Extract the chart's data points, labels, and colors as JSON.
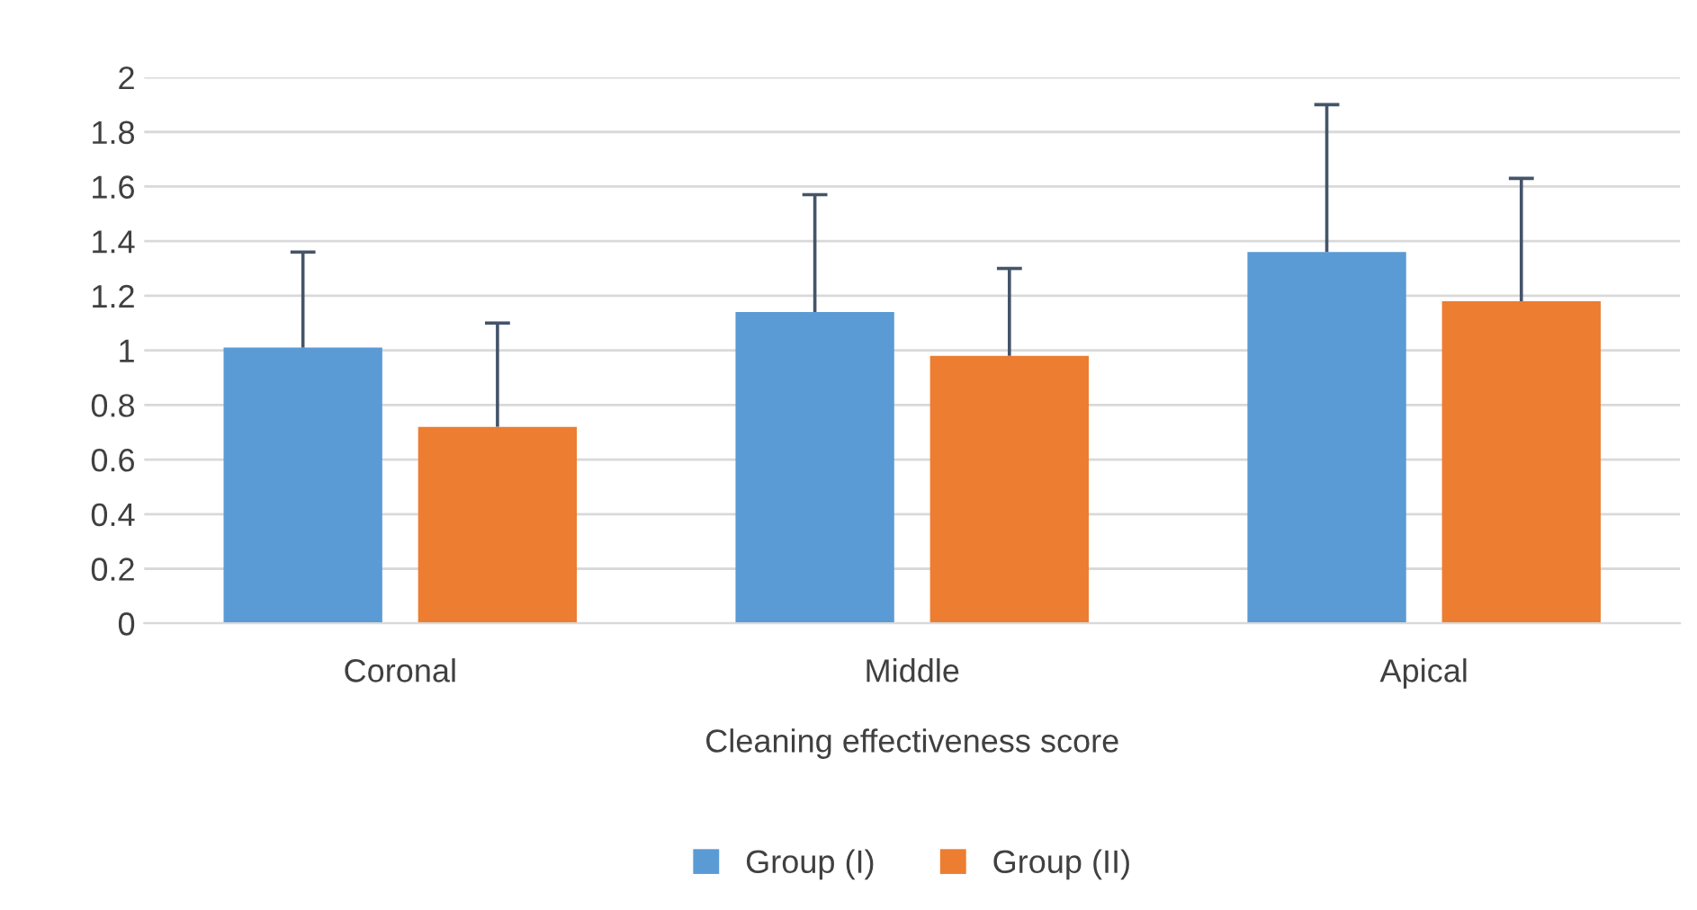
{
  "chart_data": {
    "type": "bar",
    "xlabel": "Cleaning effectiveness score",
    "categories": [
      "Coronal",
      "Middle",
      "Apical"
    ],
    "series": [
      {
        "name": "Group (I)",
        "color": "#5b9bd5",
        "values": [
          1.01,
          1.14,
          1.36
        ],
        "errors": [
          [
            1.01,
            1.36
          ],
          [
            1.14,
            1.57
          ],
          [
            1.36,
            1.9
          ]
        ]
      },
      {
        "name": "Group (II)",
        "color": "#ed7d31",
        "values": [
          0.72,
          0.98,
          1.18
        ],
        "errors": [
          [
            0.72,
            1.1
          ],
          [
            0.98,
            1.3
          ],
          [
            1.18,
            1.63
          ]
        ]
      }
    ],
    "ylim": [
      0,
      2
    ],
    "yticks": [
      0,
      {
        "value": 0.2,
        "label": "0.2"
      },
      {
        "value": 0.4,
        "label": "0.4"
      },
      {
        "value": 0.6,
        "label": "0.6"
      },
      {
        "value": 0.8,
        "label": "0.8"
      },
      1,
      {
        "value": 1.2,
        "label": "1.2"
      },
      {
        "value": 1.4,
        "label": "1.4"
      },
      {
        "value": 1.6,
        "label": "1.6"
      },
      {
        "value": 1.8,
        "label": "1.8"
      },
      2
    ],
    "grid": "y",
    "legend": "bottom"
  }
}
